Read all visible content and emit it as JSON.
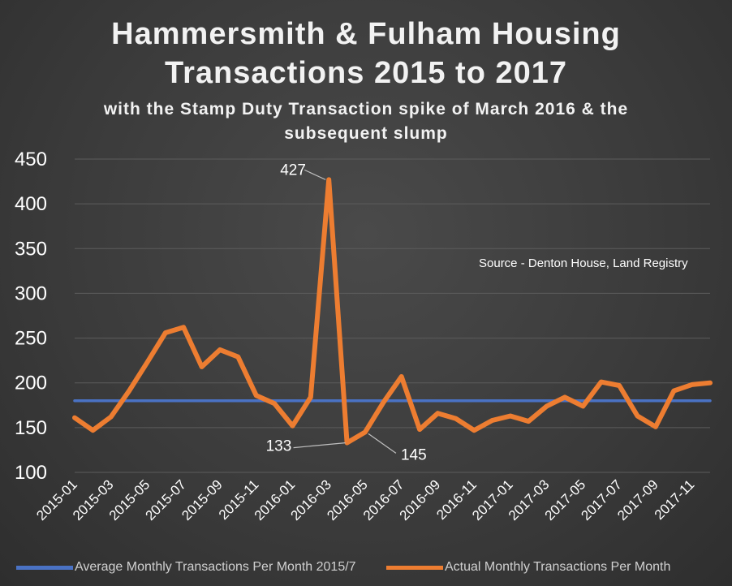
{
  "chart_data": {
    "type": "line",
    "title": "Hammersmith & Fulham Housing Transactions 2015 to 2017",
    "title_lines": [
      "Hammersmith & Fulham Housing",
      "Transactions 2015 to 2017"
    ],
    "subtitle": "with the Stamp Duty Transaction spike of March 2016 & the subsequent slump",
    "subtitle_lines": [
      "with the Stamp Duty Transaction spike of March 2016 & the",
      "subsequent slump"
    ],
    "xlabel": "",
    "ylabel": "",
    "ylim": [
      100,
      450
    ],
    "yticks": [
      100,
      150,
      200,
      250,
      300,
      350,
      400,
      450
    ],
    "grid": true,
    "legend_position": "bottom",
    "source_note": "Source - Denton House, Land Registry",
    "categories": [
      "2015-01",
      "2015-02",
      "2015-03",
      "2015-04",
      "2015-05",
      "2015-06",
      "2015-07",
      "2015-08",
      "2015-09",
      "2015-10",
      "2015-11",
      "2015-12",
      "2016-01",
      "2016-02",
      "2016-03",
      "2016-04",
      "2016-05",
      "2016-06",
      "2016-07",
      "2016-08",
      "2016-09",
      "2016-10",
      "2016-11",
      "2016-12",
      "2017-01",
      "2017-02",
      "2017-03",
      "2017-04",
      "2017-05",
      "2017-06",
      "2017-07",
      "2017-08",
      "2017-09",
      "2017-10",
      "2017-11",
      "2017-12"
    ],
    "tick_labels": [
      "2015-01",
      "2015-03",
      "2015-05",
      "2015-07",
      "2015-09",
      "2015-11",
      "2016-01",
      "2016-03",
      "2016-05",
      "2016-07",
      "2016-09",
      "2016-11",
      "2017-01",
      "2017-03",
      "2017-05",
      "2017-07",
      "2017-09",
      "2017-11"
    ],
    "series": [
      {
        "name": "Average Monthly Transactions Per Month 2015/7",
        "color": "#4a72c4",
        "values": [
          180,
          180,
          180,
          180,
          180,
          180,
          180,
          180,
          180,
          180,
          180,
          180,
          180,
          180,
          180,
          180,
          180,
          180,
          180,
          180,
          180,
          180,
          180,
          180,
          180,
          180,
          180,
          180,
          180,
          180,
          180,
          180,
          180,
          180,
          180,
          180
        ]
      },
      {
        "name": "Actual Monthly Transactions Per Month",
        "color": "#ed7d31",
        "values": [
          161,
          147,
          162,
          191,
          223,
          256,
          262,
          218,
          237,
          229,
          186,
          177,
          152,
          184,
          427,
          133,
          145,
          178,
          207,
          148,
          166,
          160,
          147,
          158,
          163,
          157,
          174,
          184,
          174,
          201,
          197,
          163,
          151,
          191,
          198,
          200
        ]
      }
    ],
    "annotations": [
      {
        "text": "427",
        "category": "2016-03",
        "value": 427
      },
      {
        "text": "133",
        "category": "2016-04",
        "value": 133
      },
      {
        "text": "145",
        "category": "2016-05",
        "value": 145
      }
    ]
  }
}
